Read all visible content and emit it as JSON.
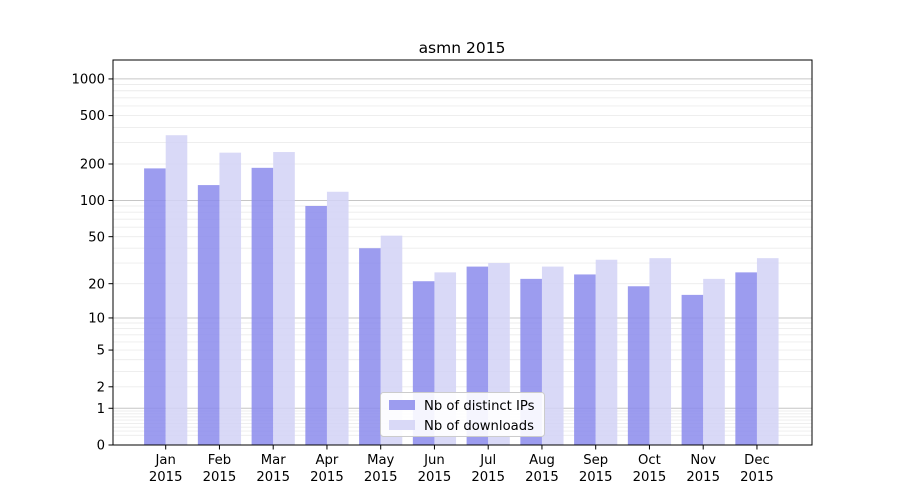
{
  "chart_data": {
    "type": "bar",
    "title": "asmn 2015",
    "categories": [
      "Jan",
      "Feb",
      "Mar",
      "Apr",
      "May",
      "Jun",
      "Jul",
      "Aug",
      "Sep",
      "Oct",
      "Nov",
      "Dec"
    ],
    "category_year": "2015",
    "series": [
      {
        "name": "Nb of distinct IPs",
        "color": "#8b8bec",
        "values": [
          184,
          134,
          186,
          90,
          40,
          21,
          28,
          22,
          24,
          19,
          16,
          25
        ]
      },
      {
        "name": "Nb of downloads",
        "color": "#d2d2f6",
        "values": [
          345,
          248,
          251,
          118,
          51,
          25,
          30,
          28,
          32,
          33,
          22,
          33
        ]
      }
    ],
    "bar_opacity": 0.85,
    "y_ticks": [
      0,
      1,
      2,
      5,
      10,
      20,
      50,
      100,
      200,
      500,
      1000
    ],
    "scale": "log1p",
    "ylim": [
      0,
      1430
    ],
    "grid": true,
    "grid_major_color": "#c6c6c6",
    "grid_minor_color": "#ececec",
    "frame_color": "#000000",
    "legend_position": "lower center",
    "xlabel": "",
    "ylabel": ""
  }
}
